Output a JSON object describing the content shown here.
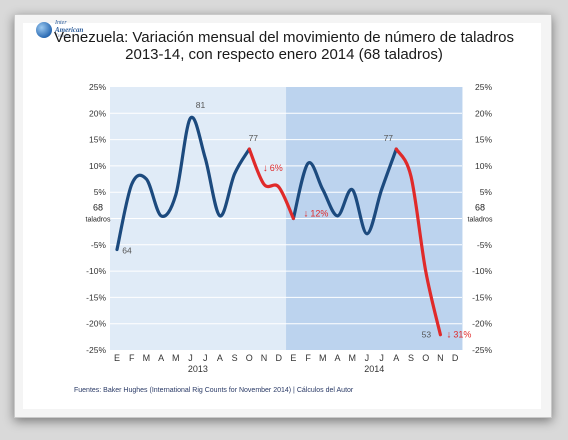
{
  "logo": {
    "line1": "Inter",
    "line2": "American",
    "line3": "Trends"
  },
  "title_line1": "Venezuela: Variación mensual del movimiento de número de taladros",
  "title_line2": "2013-14, con respecto enero 2014 (68 taladros)",
  "source": "Fuentes: Baker Hughes (International Rig Counts for November 2014)  |  Cálculos del Autor",
  "colors": {
    "plot_bg": "#e0ebf7",
    "highlight_bg": "#bcd3ee",
    "line_blue": "#1c4a7e",
    "line_red": "#e02a2a",
    "grid": "#ffffff"
  },
  "chart_data": {
    "type": "line",
    "unit": "%",
    "ylim": [
      -25,
      25
    ],
    "yticks": [
      25,
      20,
      15,
      10,
      5,
      0,
      -5,
      -10,
      -15,
      -20,
      -25
    ],
    "ytick_labels": [
      "25%",
      "20%",
      "15%",
      "10%",
      "5%",
      "",
      "-5%",
      "-10%",
      "-15%",
      "-20%",
      "-25%"
    ],
    "months": [
      "E",
      "F",
      "M",
      "A",
      "M",
      "J",
      "J",
      "A",
      "S",
      "O",
      "N",
      "D",
      "E",
      "F",
      "M",
      "A",
      "M",
      "J",
      "J",
      "A",
      "S",
      "O",
      "N",
      "D"
    ],
    "years": [
      {
        "label": "2013",
        "start": 0,
        "end": 11
      },
      {
        "label": "2014",
        "start": 12,
        "end": 23
      }
    ],
    "highlight_range": [
      12,
      23
    ],
    "baseline_label_left": [
      "68",
      "taladros"
    ],
    "baseline_label_right": [
      "68",
      "taladros"
    ],
    "series": [
      {
        "values": [
          -5.9,
          6.5,
          7.5,
          0.5,
          4.5,
          19.1,
          11.5,
          0.5,
          8.5,
          13.2,
          6.5,
          6.0,
          0.0,
          10.5,
          5.5,
          0.5,
          5.5,
          -2.9,
          5.5,
          13.2,
          8.0,
          -10.0,
          -22.1,
          null
        ],
        "blue_segments": [
          [
            0,
            9
          ],
          [
            12,
            19
          ]
        ],
        "red_segments": [
          [
            9,
            12
          ],
          [
            19,
            22
          ]
        ]
      }
    ],
    "point_labels": [
      {
        "index": 0,
        "text": "64"
      },
      {
        "index": 5,
        "text": "81"
      },
      {
        "index": 9,
        "text": "77"
      },
      {
        "index": 19,
        "text": "77"
      },
      {
        "index": 22,
        "text": "53"
      }
    ],
    "change_annotations": [
      {
        "index": 11,
        "text": "6%"
      },
      {
        "index": 12,
        "text": "12%"
      },
      {
        "index": 22,
        "text": "31%"
      }
    ]
  }
}
